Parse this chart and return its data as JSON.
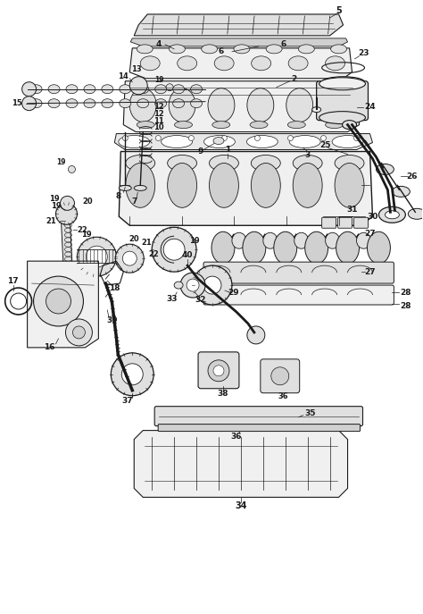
{
  "background_color": "#ffffff",
  "line_color": "#1a1a1a",
  "fig_width": 4.74,
  "fig_height": 6.87,
  "dpi": 100
}
